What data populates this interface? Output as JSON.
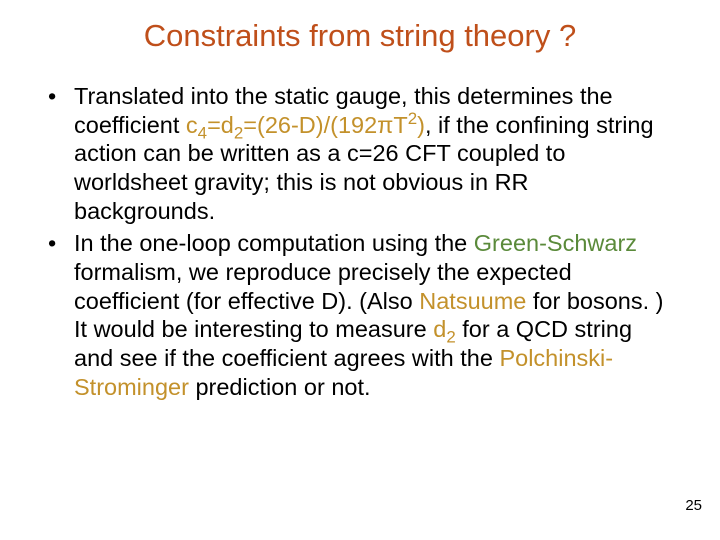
{
  "colors": {
    "title": "#bf4f1a",
    "highlight": "#c3912b",
    "highlight2": "#c3912b",
    "green": "#5a8a3a",
    "body": "#000000",
    "background": "#ffffff"
  },
  "title": "Constraints from string theory ?",
  "page_number": "25",
  "bullets": [
    {
      "pre": "Translated into the static gauge, this determines the coefficient ",
      "formula_pre": "c",
      "formula_sub1": "4",
      "formula_mid1": "=d",
      "formula_sub2": "2",
      "formula_mid2": "=(26-D)/(192",
      "formula_pi": "π",
      "formula_T": "T",
      "formula_sup": "2",
      "formula_close": ")",
      "post": ", if the confining string action can be written as a c=26 CFT coupled to worldsheet gravity; this is not obvious in RR backgrounds."
    },
    {
      "pre": "In the one-loop computation using the ",
      "green": "Green-Schwarz",
      "mid1": " formalism, we reproduce precisely the expected coefficient (for effective D). (Also ",
      "nats": "Natsuume",
      "mid2": " for bosons. ) It would be interesting to measure ",
      "d2_d": "d",
      "d2_sub": "2",
      "mid3": " for a QCD string and see if the coefficient agrees with the ",
      "ps": "Polchinski-Strominger",
      "post": " prediction or not."
    }
  ]
}
